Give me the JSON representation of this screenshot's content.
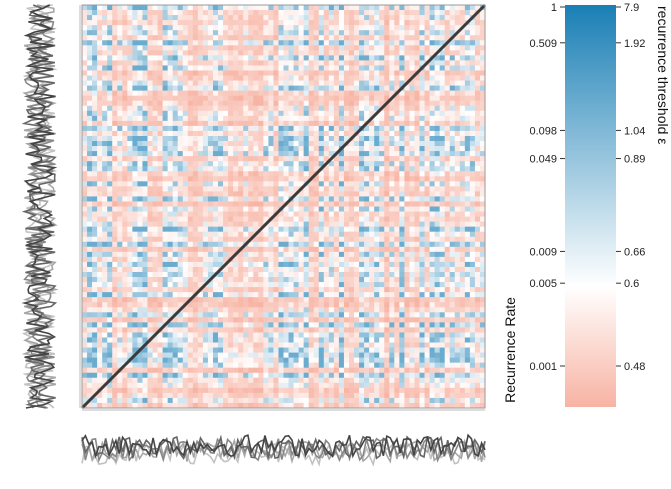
{
  "chart_data": {
    "type": "heatmap",
    "title": "",
    "matrix_kind": "recurrence plot",
    "diagonal_line": true,
    "colorbar": {
      "colors": {
        "high": "#1a7fb5",
        "mid": "#ffffff",
        "low": "#f7b3a3"
      },
      "left_label": "Recurrence Rate",
      "right_label": "recurrence threshold ε",
      "rate_ticks": [
        "1",
        "0.509",
        "0.098",
        "0.049",
        "0.009",
        "0.005",
        "0.001"
      ],
      "threshold_ticks": [
        "7.9",
        "1.92",
        "1.04",
        "0.89",
        "0.66",
        "0.6",
        "0.48"
      ],
      "tick_fraction_from_top": [
        0.0,
        0.094,
        0.312,
        0.382,
        0.613,
        0.692,
        0.898
      ]
    },
    "marginal_series": {
      "color_shades": [
        "#444444",
        "#666666",
        "#888888",
        "#a6a6a6",
        "#c2c2c2"
      ],
      "count": 5
    }
  }
}
